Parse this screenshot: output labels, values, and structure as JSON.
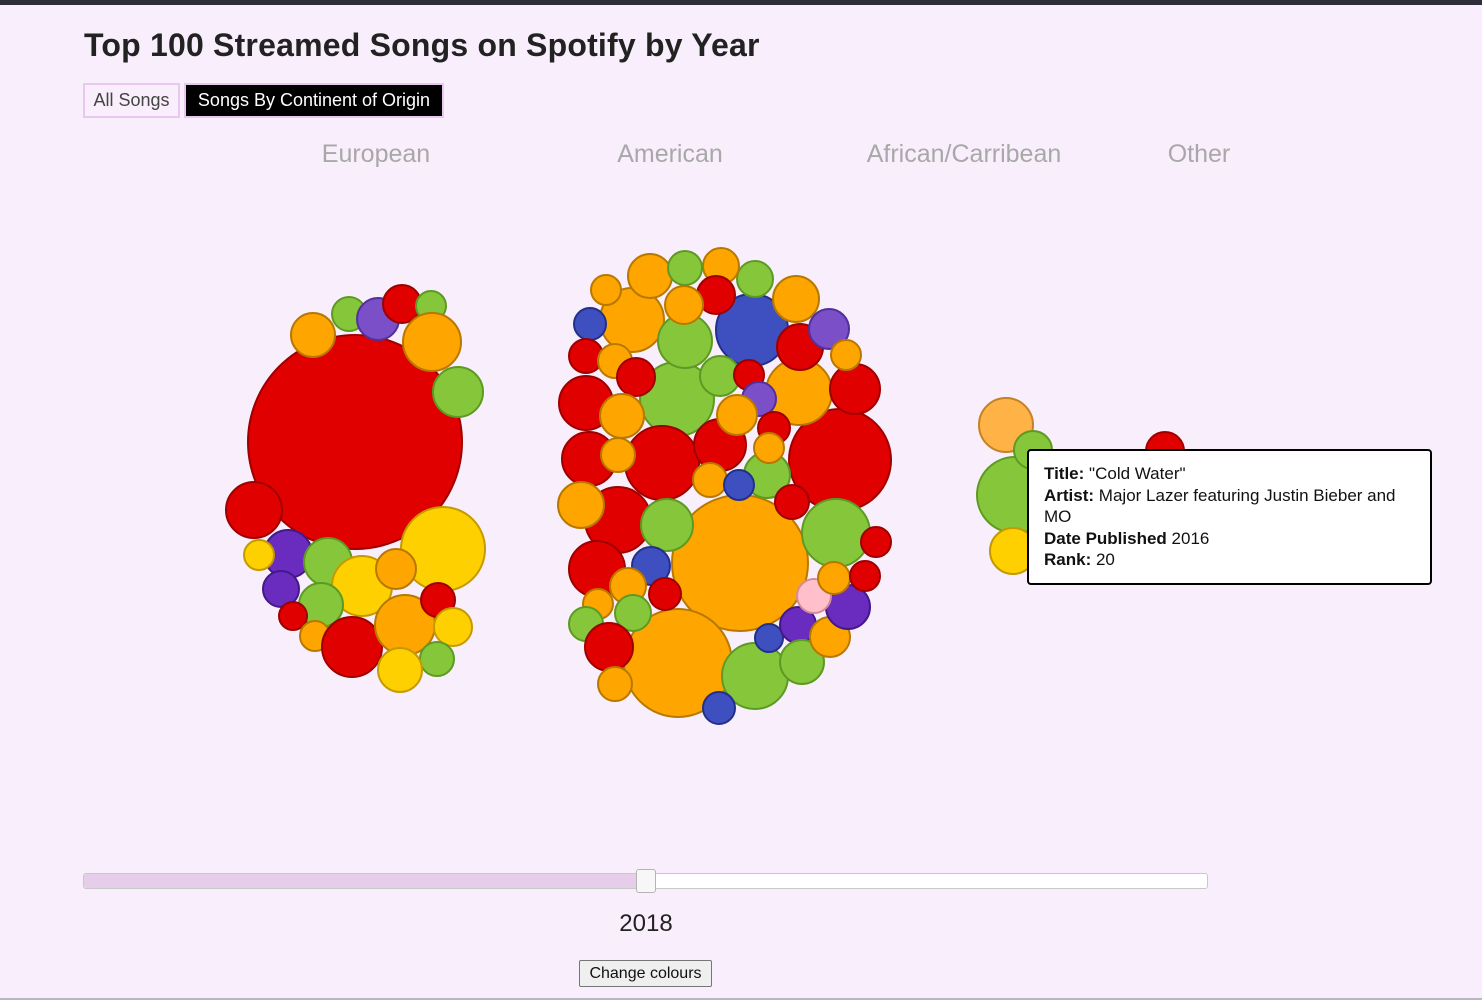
{
  "title": "Top 100 Streamed Songs on Spotify by Year",
  "tabs": {
    "all_label": "All Songs",
    "continent_label": "Songs By Continent of Origin",
    "active": "continent"
  },
  "continents": [
    "European",
    "American",
    "African/Carribean",
    "Other"
  ],
  "tooltip": {
    "title_label": "Title:",
    "title_value": "\"Cold Water\"",
    "artist_label": "Artist:",
    "artist_value": "Major Lazer featuring Justin Bieber and MO",
    "date_label": "Date Published",
    "date_value": "2016",
    "rank_label": "Rank:",
    "rank_value": "20"
  },
  "slider": {
    "year": "2018",
    "progress": 0.5
  },
  "colour_button": "Change colours",
  "colors": {
    "background": "#f9eefb",
    "red": "#e10000",
    "orange": "#ffa500",
    "yellow": "#ffd000",
    "green": "#86c63a",
    "blue": "#3e4fc0",
    "purple": "#6a2bbf",
    "lavender": "#7a4fc8",
    "pink": "#ffc0cb",
    "light_orange": "#ffb347"
  }
}
